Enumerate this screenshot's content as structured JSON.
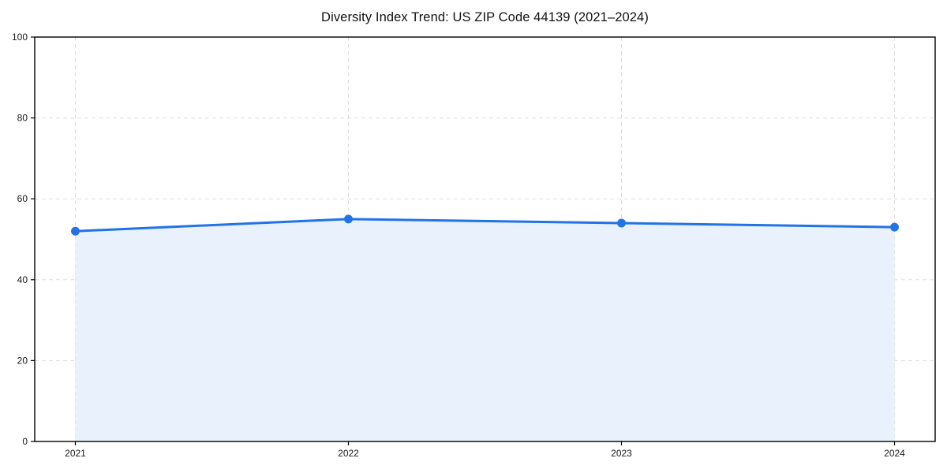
{
  "chart_data": {
    "type": "area",
    "title": "Diversity Index Trend: US ZIP Code 44139 (2021–2024)",
    "x": [
      "2021",
      "2022",
      "2023",
      "2024"
    ],
    "series": [
      {
        "name": "Diversity Index",
        "values": [
          52,
          55,
          54,
          53
        ]
      }
    ],
    "xlabel": "",
    "ylabel": "",
    "ylim": [
      0,
      100
    ],
    "yticks": [
      0,
      20,
      40,
      60,
      80,
      100
    ],
    "grid": true,
    "grid_style": "dashed",
    "legend": "none",
    "colors": {
      "line": "#2272e8",
      "marker": "#2272e8",
      "fill": "#e9f1fc",
      "grid": "#dddddd",
      "axis": "#000000",
      "text": "#1a1a1a"
    }
  }
}
